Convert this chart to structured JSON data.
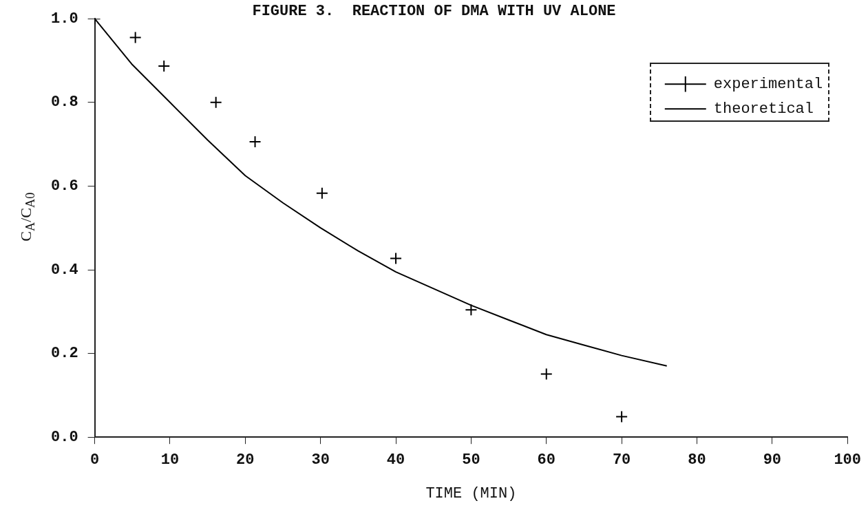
{
  "chart_data": {
    "type": "scatter",
    "title": "FIGURE 3.  REACTION OF DMA WITH UV ALONE",
    "xlabel": "TIME (MIN)",
    "ylabel": "C$_{A}$/C$_{A0}$",
    "xlim": [
      0,
      100
    ],
    "xticks": [
      0,
      10,
      20,
      30,
      40,
      50,
      60,
      70,
      80,
      90,
      100
    ],
    "ylim": [
      0,
      1.0
    ],
    "yticks": [
      {
        "value": 0,
        "label": "0.0"
      },
      {
        "value": 0.2,
        "label": "0.2"
      },
      {
        "value": 0.4,
        "label": "0.4"
      },
      {
        "value": 0.6,
        "label": "0.6"
      },
      {
        "value": 0.8,
        "label": "0.8"
      },
      {
        "value": 1.0,
        "label": "1.0"
      }
    ],
    "grid": false,
    "legend": "top right",
    "series": [
      {
        "name": "experimental",
        "marker": "cross",
        "color": "#000000",
        "x": [
          0,
          5.4,
          9.2,
          16.1,
          21.3,
          30.2,
          40,
          50,
          60,
          70
        ],
        "values": [
          1.0,
          0.955,
          0.887,
          0.8,
          0.706,
          0.583,
          0.427,
          0.304,
          0.151,
          0.049
        ]
      },
      {
        "name": "theoretical",
        "type": "line",
        "marker": "none",
        "line_style": "solid",
        "color": "#000000",
        "x": [
          0,
          5,
          10,
          15,
          20,
          25,
          30,
          35,
          40,
          45,
          50,
          55,
          60,
          65,
          70,
          76
        ],
        "values": [
          1.0,
          0.89,
          0.8,
          0.71,
          0.625,
          0.56,
          0.5,
          0.445,
          0.395,
          0.355,
          0.315,
          0.28,
          0.245,
          0.22,
          0.195,
          0.17
        ]
      }
    ]
  }
}
